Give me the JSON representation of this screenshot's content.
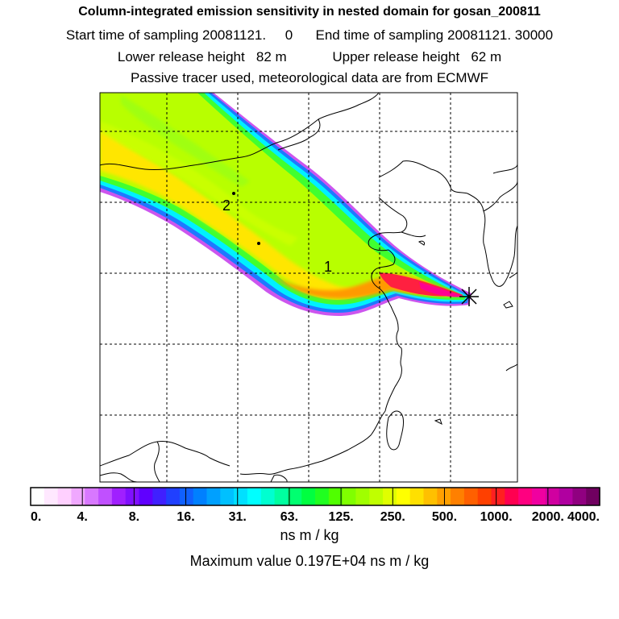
{
  "header": {
    "title": "Column-integrated emission sensitivity in nested domain for gosan_200811",
    "sampling_line": "Start time of sampling 20081121.     0      End time of sampling 20081121. 30000",
    "height_line": "Lower release height   82 m            Upper release height   62 m",
    "tracer_line": "Passive tracer used, meteorological data are from ECMWF"
  },
  "map": {
    "labels": [
      {
        "id": "2",
        "text": "2"
      },
      {
        "id": "1",
        "text": "1"
      }
    ],
    "release_marker": "star-icon"
  },
  "colorbar": {
    "tick_labels": [
      "0.",
      "4.",
      "8.",
      "16.",
      "31.",
      "63.",
      "125.",
      "250.",
      "500.",
      "1000.",
      "2000.",
      "4000."
    ],
    "colors": [
      "#ffffff",
      "#ffe8ff",
      "#ffd0ff",
      "#f0a8ff",
      "#d878ff",
      "#c050ff",
      "#a020ff",
      "#8010ff",
      "#6000ff",
      "#4020ff",
      "#2040ff",
      "#1060ff",
      "#0080ff",
      "#00a0ff",
      "#00c0ff",
      "#00e0ff",
      "#00ffff",
      "#00ffd0",
      "#00ffa0",
      "#00ff70",
      "#00ff40",
      "#20ff20",
      "#50ff00",
      "#80ff00",
      "#a0ff00",
      "#c0ff00",
      "#e0ff00",
      "#ffff00",
      "#ffe000",
      "#ffc000",
      "#ffa000",
      "#ff8000",
      "#ff6000",
      "#ff4000",
      "#ff2020",
      "#ff0050",
      "#ff0080",
      "#f000a0",
      "#d000a0",
      "#b000a0",
      "#900080",
      "#700060"
    ],
    "unit": "ns m / kg"
  },
  "max_value": "Maximum value  0.197E+04 ns m / kg"
}
